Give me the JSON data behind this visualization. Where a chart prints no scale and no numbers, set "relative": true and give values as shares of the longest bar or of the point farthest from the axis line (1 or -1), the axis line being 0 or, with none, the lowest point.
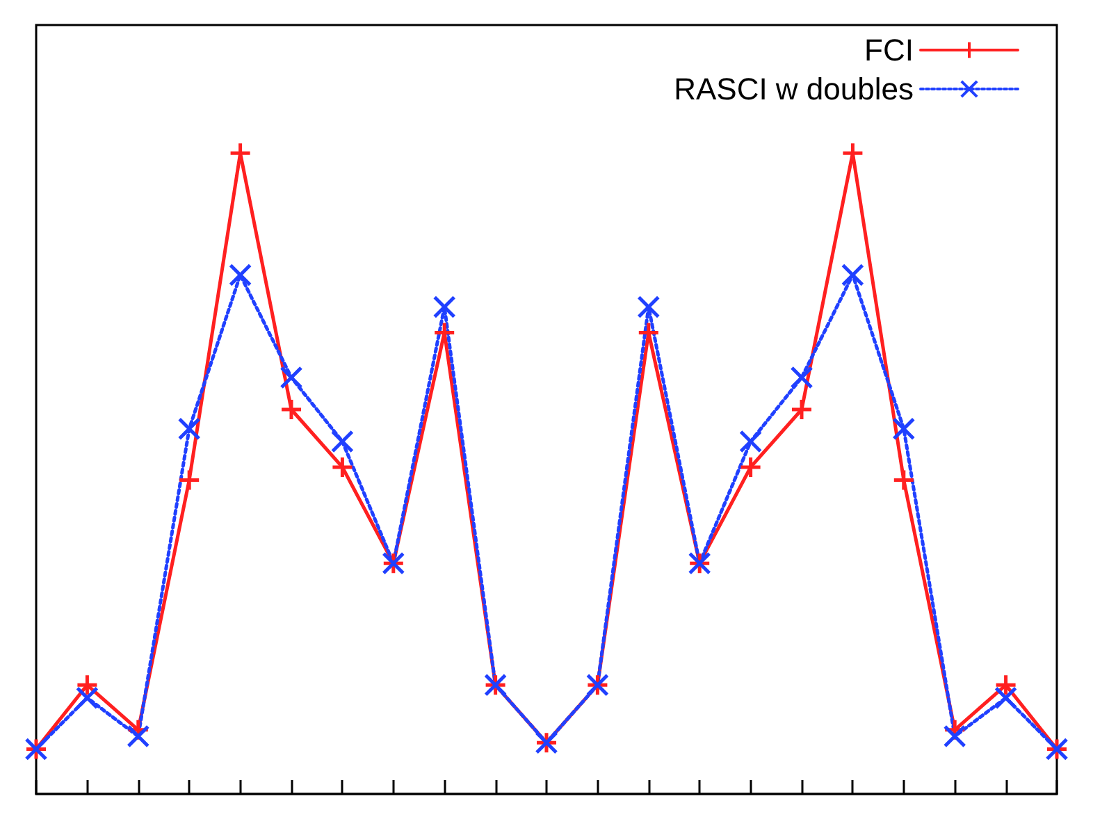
{
  "chart_data": {
    "type": "line",
    "relative": true,
    "categories": [
      null,
      null,
      null,
      null,
      null,
      null,
      null,
      null,
      null,
      null,
      null,
      null,
      null,
      null,
      null,
      null,
      null,
      null,
      null,
      null,
      null
    ],
    "legend": "top right",
    "series": [
      {
        "name": "FCI",
        "color": "#ff2020",
        "marker": "cross",
        "line_style": "solid",
        "values": [
          0.07,
          0.17,
          0.1,
          0.49,
          1,
          0.6,
          0.51,
          0.36,
          0.72,
          0.17,
          0.08,
          0.17,
          0.72,
          0.36,
          0.51,
          0.6,
          1,
          0.49,
          0.1,
          0.17,
          0.07
        ]
      },
      {
        "name": "RASCI w doubles",
        "color": "#2040ff",
        "marker": "x",
        "line_style": "dotted",
        "values": [
          0.07,
          0.15,
          0.09,
          0.57,
          0.81,
          0.65,
          0.55,
          0.36,
          0.76,
          0.17,
          0.08,
          0.17,
          0.76,
          0.36,
          0.55,
          0.65,
          0.81,
          0.57,
          0.09,
          0.15,
          0.07
        ]
      }
    ]
  }
}
